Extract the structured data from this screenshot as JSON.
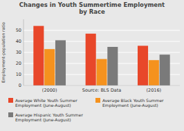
{
  "chart_data": {
    "type": "bar",
    "title": "Changes in Youth Summertime Employment\nby Race",
    "categories": [
      "(2000)",
      "Source: BLS Data",
      "(2016)"
    ],
    "series": [
      {
        "name": "Average White Youth Summer\nEmployment (June-August)",
        "color": "#e8472a",
        "values": [
          54,
          47,
          36
        ]
      },
      {
        "name": "Average Black Youth Summer\nEmployment (June-August)",
        "color": "#f5921e",
        "values": [
          33,
          24,
          23
        ]
      },
      {
        "name": "Average Hispanic Youth Summer\nEmployment (June-August)",
        "color": "#7a7a7a",
        "values": [
          41,
          35,
          28
        ]
      }
    ],
    "ylabel": "Employment-population ratio",
    "ylim": [
      0,
      60
    ],
    "yticks": [
      0,
      10,
      20,
      30,
      40,
      50
    ],
    "grid": true
  }
}
